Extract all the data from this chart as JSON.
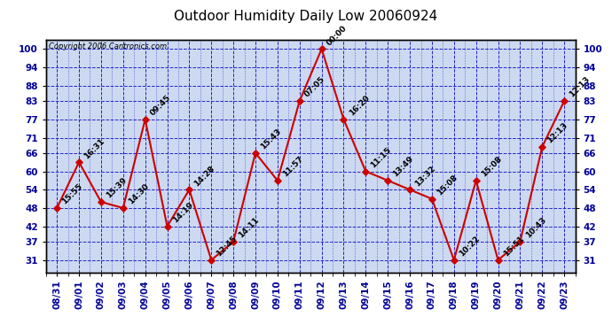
{
  "title": "Outdoor Humidity Daily Low 20060924",
  "copyright": "Copyright 2006 Cantronics.com",
  "plot_background": "#ccd9f0",
  "x_labels": [
    "08/31",
    "09/01",
    "09/02",
    "09/03",
    "09/04",
    "09/05",
    "09/06",
    "09/07",
    "09/08",
    "09/09",
    "09/10",
    "09/11",
    "09/12",
    "09/13",
    "09/14",
    "09/15",
    "09/16",
    "09/17",
    "09/18",
    "09/19",
    "09/20",
    "09/21",
    "09/22",
    "09/23"
  ],
  "y_values": [
    48,
    63,
    50,
    48,
    77,
    42,
    54,
    31,
    37,
    66,
    57,
    83,
    100,
    77,
    60,
    57,
    54,
    51,
    31,
    57,
    31,
    37,
    68,
    83
  ],
  "point_labels": [
    "15:55",
    "16:31",
    "15:39",
    "14:30",
    "09:45",
    "14:19",
    "14:28",
    "12:45",
    "14:11",
    "15:43",
    "11:57",
    "07:05",
    "00:00",
    "16:20",
    "11:15",
    "13:49",
    "13:32",
    "15:08",
    "10:22",
    "15:08",
    "15:51",
    "10:43",
    "12:13",
    "12:13"
  ],
  "line_color": "#cc0000",
  "marker_color": "#cc0000",
  "grid_color": "#2222cc",
  "yticks": [
    31,
    37,
    42,
    48,
    54,
    60,
    66,
    71,
    77,
    83,
    88,
    94,
    100
  ],
  "ylim": [
    27,
    103
  ],
  "title_fontsize": 11,
  "label_fontsize": 6.5,
  "tick_fontsize": 7.5,
  "tick_fontweight": "bold",
  "tick_color": "#000099"
}
